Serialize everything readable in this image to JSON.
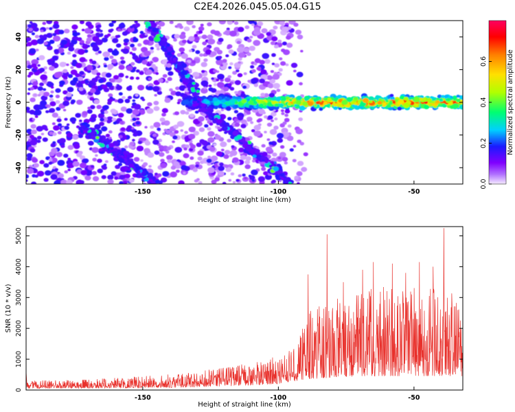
{
  "title": "C2E4.2026.045.05.04.G15",
  "chart_data": [
    {
      "type": "heatmap",
      "xlabel": "Height of straight line (km)",
      "ylabel": "Frequency (Hz)",
      "xlim": [
        -193,
        -32
      ],
      "ylim": [
        -50,
        50
      ],
      "xticks": [
        -150,
        -100,
        -50
      ],
      "yticks": [
        -40,
        -20,
        0,
        20,
        40
      ],
      "grid": false,
      "colorbar": {
        "label": "Normalized spectral amplitude",
        "range": [
          0,
          0.8
        ],
        "ticks": [
          0.0,
          0.2,
          0.4,
          0.6
        ],
        "colormap": [
          "#f5ecff",
          "#8000ff",
          "#1a1aff",
          "#00d0ff",
          "#00ff70",
          "#b0ff00",
          "#ffe000",
          "#ff8000",
          "#ff0000",
          "#ff0060"
        ]
      },
      "features": [
        {
          "name": "band along 0 Hz",
          "x_range": [
            -135,
            -32
          ],
          "freq_hz": 0,
          "amplitude_range": [
            0.2,
            0.8
          ]
        },
        {
          "name": "descending streak",
          "x_range": [
            -148,
            -130
          ],
          "freq_range_hz": [
            50,
            5
          ]
        },
        {
          "name": "descending streak",
          "x_range": [
            -130,
            -95
          ],
          "freq_range_hz": [
            0,
            -50
          ]
        },
        {
          "name": "descending streak",
          "x_range": [
            -172,
            -145
          ],
          "freq_range_hz": [
            -15,
            -50
          ]
        }
      ]
    },
    {
      "type": "line",
      "xlabel": "Height of straight line (km)",
      "ylabel": "SNR (10 * v/v)",
      "xlim": [
        -193,
        -32
      ],
      "ylim": [
        0,
        5300
      ],
      "xticks": [
        -150,
        -100,
        -50
      ],
      "yticks": [
        0,
        1000,
        2000,
        3000,
        4000,
        5000
      ],
      "grid": false,
      "series": [
        {
          "color": "#e8302b",
          "envelope": {
            "x": [
              -193,
              -170,
              -150,
              -130,
              -110,
              -100,
              -93,
              -90,
              -80,
              -70,
              -60,
              -50,
              -40,
              -32
            ],
            "y_low": [
              50,
              60,
              70,
              90,
              150,
              200,
              300,
              350,
              400,
              450,
              450,
              450,
              450,
              450
            ],
            "y_high": [
              300,
              350,
              450,
              600,
              900,
              1100,
              1400,
              2500,
              3000,
              3300,
              3500,
              3400,
              3300,
              3000
            ]
          },
          "peaks": [
            {
              "x": -82,
              "y": 5050
            },
            {
              "x": -39,
              "y": 5250
            },
            {
              "x": -65,
              "y": 4150
            },
            {
              "x": -58,
              "y": 4100
            },
            {
              "x": -48,
              "y": 4150
            },
            {
              "x": -43,
              "y": 4000
            },
            {
              "x": -89,
              "y": 3750
            },
            {
              "x": -76,
              "y": 3500
            },
            {
              "x": -69,
              "y": 3900
            },
            {
              "x": -53,
              "y": 3800
            }
          ]
        }
      ]
    }
  ]
}
